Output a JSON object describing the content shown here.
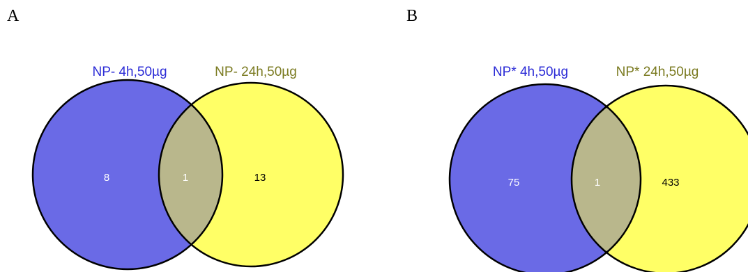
{
  "panels": [
    {
      "letter": "A",
      "left_label": "NP- 4h,50µg",
      "right_label": "NP- 24h,50µg",
      "left_only": "8",
      "overlap": "1",
      "right_only": "13"
    },
    {
      "letter": "B",
      "left_label": "NP* 4h,50µg",
      "right_label": "NP* 24h,50µg",
      "left_only": "75",
      "overlap": "1",
      "right_only": "433"
    }
  ],
  "colors": {
    "left_fill": "#6a6ae6",
    "right_fill": "#ffff66",
    "overlap_fill": "#b9b78c",
    "outline": "#000000",
    "left_label": "#2b2bd6",
    "right_label": "#7a7a20",
    "left_count": "#ffffff",
    "overlap_count": "#ffffff",
    "right_count": "#000000"
  }
}
